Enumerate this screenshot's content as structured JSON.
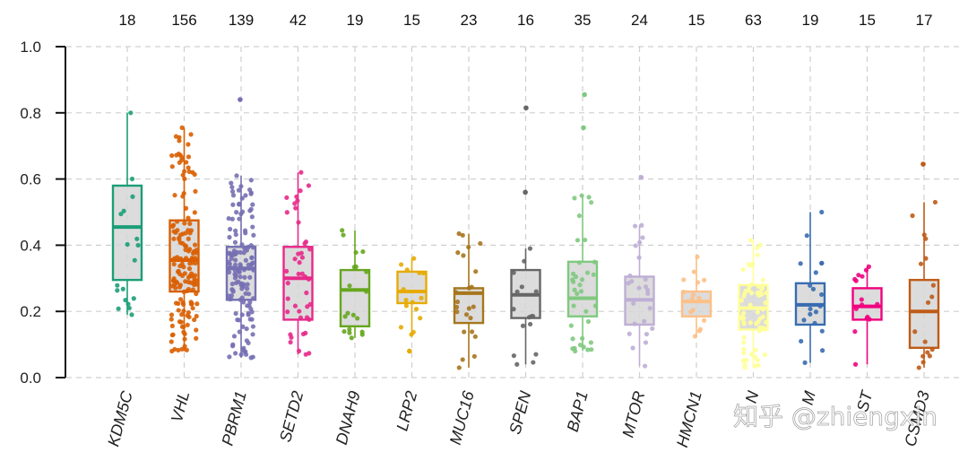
{
  "watermark": "知乎 @zhiengxin",
  "chart_data": {
    "type": "boxplot",
    "title": "",
    "xlabel": "",
    "ylabel": "",
    "ylim": [
      0,
      1.0
    ],
    "yticks": [
      0.0,
      0.2,
      0.4,
      0.6,
      0.8,
      1.0
    ],
    "ytick_labels": [
      "0.0",
      "0.2",
      "0.4",
      "0.6",
      "0.8",
      "1.0"
    ],
    "grid": true,
    "categories": [
      "KDM5C",
      "VHL",
      "PBRM1",
      "SETD2",
      "DNAH9",
      "LRP2",
      "MUC16",
      "SPEN",
      "BAP1",
      "MTOR",
      "HMCN1",
      "N",
      "M",
      "ST",
      "CSMD3"
    ],
    "counts": [
      "18",
      "156",
      "139",
      "42",
      "19",
      "15",
      "23",
      "16",
      "35",
      "24",
      "15",
      "63",
      "19",
      "15",
      "17"
    ],
    "colors": [
      "#1b9e77",
      "#d95f02",
      "#7570b3",
      "#e7298a",
      "#66a61e",
      "#e6ab02",
      "#a6761d",
      "#666666",
      "#7fc97f",
      "#beaed4",
      "#fdc086",
      "#ffff99",
      "#386cb0",
      "#f0027f",
      "#bf5b17"
    ],
    "boxes": [
      {
        "min": 0.19,
        "q1": 0.295,
        "median": 0.455,
        "q3": 0.58,
        "max": 0.8,
        "outliers": []
      },
      {
        "min": 0.08,
        "q1": 0.26,
        "median": 0.355,
        "q3": 0.475,
        "max": 0.755,
        "outliers": []
      },
      {
        "min": 0.06,
        "q1": 0.235,
        "median": 0.33,
        "q3": 0.395,
        "max": 0.61,
        "outliers": [
          0.84
        ]
      },
      {
        "min": 0.07,
        "q1": 0.175,
        "median": 0.3,
        "q3": 0.395,
        "max": 0.62,
        "outliers": []
      },
      {
        "min": 0.12,
        "q1": 0.155,
        "median": 0.265,
        "q3": 0.325,
        "max": 0.445,
        "outliers": []
      },
      {
        "min": 0.13,
        "q1": 0.225,
        "median": 0.26,
        "q3": 0.32,
        "max": 0.36,
        "outliers": [
          0.08
        ]
      },
      {
        "min": 0.03,
        "q1": 0.165,
        "median": 0.255,
        "q3": 0.27,
        "max": 0.435,
        "outliers": []
      },
      {
        "min": 0.04,
        "q1": 0.18,
        "median": 0.25,
        "q3": 0.325,
        "max": 0.39,
        "outliers": [
          0.56,
          0.815
        ]
      },
      {
        "min": 0.08,
        "q1": 0.185,
        "median": 0.24,
        "q3": 0.35,
        "max": 0.55,
        "outliers": [
          0.755,
          0.855
        ]
      },
      {
        "min": 0.035,
        "q1": 0.16,
        "median": 0.235,
        "q3": 0.305,
        "max": 0.46,
        "outliers": [
          0.605
        ]
      },
      {
        "min": 0.125,
        "q1": 0.185,
        "median": 0.23,
        "q3": 0.26,
        "max": 0.365,
        "outliers": []
      },
      {
        "min": 0.03,
        "q1": 0.145,
        "median": 0.21,
        "q3": 0.28,
        "max": 0.415,
        "outliers": []
      },
      {
        "min": 0.045,
        "q1": 0.16,
        "median": 0.22,
        "q3": 0.285,
        "max": 0.5,
        "outliers": []
      },
      {
        "min": 0.04,
        "q1": 0.175,
        "median": 0.215,
        "q3": 0.27,
        "max": 0.335,
        "outliers": []
      },
      {
        "min": 0.03,
        "q1": 0.09,
        "median": 0.2,
        "q3": 0.295,
        "max": 0.53,
        "outliers": [
          0.645
        ]
      }
    ]
  }
}
